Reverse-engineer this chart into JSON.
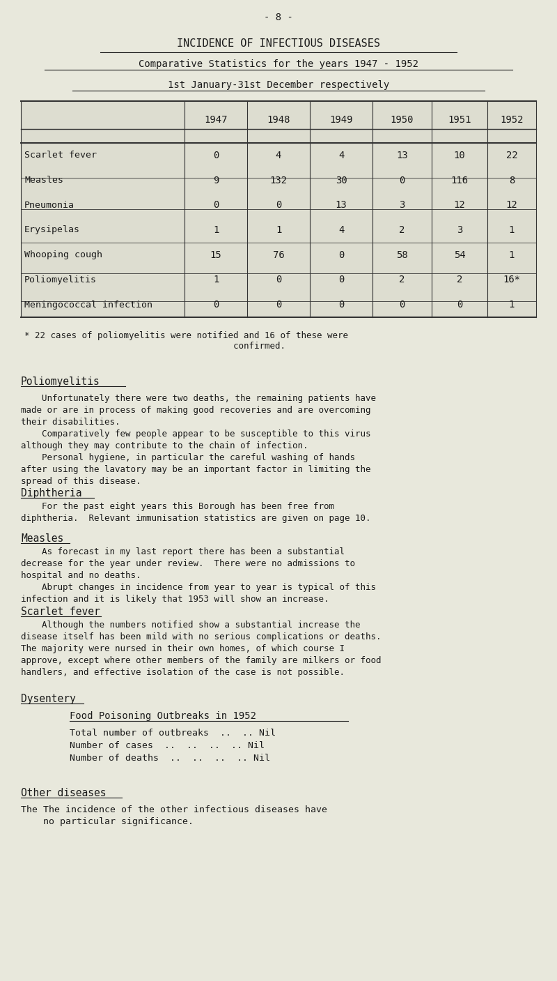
{
  "page_header": "- 8 -",
  "title1": "INCIDENCE OF INFECTIOUS DISEASES",
  "title2": "Comparative Statistics for the years 1947 - 1952",
  "title3": "1st January-31st December respectively",
  "years": [
    "1947",
    "1948",
    "1949",
    "1950",
    "1951",
    "1952"
  ],
  "diseases": [
    "Scarlet fever",
    "Measles",
    "Pneumonia",
    "Erysipelas",
    "Whooping cough",
    "Poliomyelitis",
    "Meningococcal infection"
  ],
  "table_data": [
    [
      "0",
      "4",
      "4",
      "13",
      "10",
      "22"
    ],
    [
      "9",
      "132",
      "30",
      "0",
      "116",
      "8"
    ],
    [
      "0",
      "0",
      "13",
      "3",
      "12",
      "12"
    ],
    [
      "1",
      "1",
      "4",
      "2",
      "3",
      "1"
    ],
    [
      "15",
      "76",
      "0",
      "58",
      "54",
      "1"
    ],
    [
      "1",
      "0",
      "0",
      "2",
      "2",
      "16*"
    ],
    [
      "0",
      "0",
      "0",
      "0",
      "0",
      "1"
    ]
  ],
  "footnote": "* 22 cases of poliomyelitis were notified and 16 of these were\n                                        confirmed.",
  "section_poliomyelitis_title": "Poliomyelitis",
  "section_poliomyelitis_text": "    Unfortunately there were two deaths, the remaining patients have\nmade or are in process of making good recoveries and are overcoming\ntheir disabilities.\n    Comparatively few people appear to be susceptible to this virus\nalthough they may contribute to the chain of infection.\n    Personal hygiene, in particular the careful washing of hands\nafter using the lavatory may be an important factor in limiting the\nspread of this disease.",
  "section_diphtheria_title": "Diphtheria",
  "section_diphtheria_text": "    For the past eight years this Borough has been free from\ndiphtheria.  Relevant immunisation statistics are given on page 10.",
  "section_measles_title": "Measles",
  "section_measles_text": "    As forecast in my last report there has been a substantial\ndecrease for the year under review.  There were no admissions to\nhospital and no deaths.\n    Abrupt changes in incidence from year to year is typical of this\ninfection and it is likely that 1953 will show an increase.",
  "section_scarlet_title": "Scarlet fever",
  "section_scarlet_text": "    Although the numbers notified show a substantial increase the\ndisease itself has been mild with no serious complications or deaths.\nThe majority were nursed in their own homes, of which course I\napprove, except where other members of the family are milkers or food\nhandlers, and effective isolation of the case is not possible.",
  "section_dysentery_title": "Dysentery",
  "section_dysentery_subtitle": "Food Poisoning Outbreaks in 1952",
  "section_dysentery_text": "Total number of outbreaks  ..  .. Nil\nNumber of cases  ..  ..  ..  .. Nil\nNumber of deaths  ..  ..  ..  .. Nil",
  "section_other_title": "Other diseases",
  "section_other_text": "The incidence of the other infectious diseases have\n    no particular significance.",
  "bg_color": "#e8e8dc",
  "text_color": "#1a1a1a",
  "table_bg": "#ddddd0",
  "table_line_color": "#333333",
  "font_family": "monospace"
}
